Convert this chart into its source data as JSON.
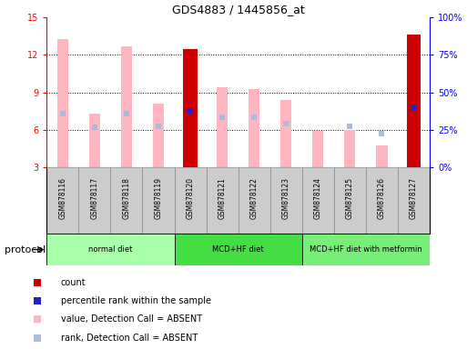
{
  "title": "GDS4883 / 1445856_at",
  "samples": [
    "GSM878116",
    "GSM878117",
    "GSM878118",
    "GSM878119",
    "GSM878120",
    "GSM878121",
    "GSM878122",
    "GSM878123",
    "GSM878124",
    "GSM878125",
    "GSM878126",
    "GSM878127"
  ],
  "value_absent": [
    13.3,
    7.3,
    12.7,
    8.1,
    null,
    9.4,
    9.3,
    8.4,
    5.9,
    6.0,
    4.8,
    null
  ],
  "rank_absent": [
    7.3,
    6.2,
    7.3,
    6.3,
    null,
    7.0,
    7.0,
    6.5,
    null,
    6.3,
    5.7,
    null
  ],
  "count_present": [
    null,
    null,
    null,
    null,
    12.5,
    null,
    null,
    null,
    null,
    null,
    null,
    13.6
  ],
  "percentile_present": [
    null,
    null,
    null,
    null,
    7.5,
    null,
    null,
    null,
    null,
    null,
    null,
    7.8
  ],
  "ylim": [
    3,
    15
  ],
  "yticks_left": [
    3,
    6,
    9,
    12,
    15
  ],
  "yticks_right": [
    "0%",
    "25%",
    "50%",
    "75%",
    "100%"
  ],
  "yticks_right_vals": [
    3,
    6,
    9,
    12,
    15
  ],
  "groups": [
    {
      "label": "normal diet",
      "start": 0,
      "end": 3,
      "color": "#aaffaa"
    },
    {
      "label": "MCD+HF diet",
      "start": 4,
      "end": 7,
      "color": "#44dd44"
    },
    {
      "label": "MCD+HF diet with metformin",
      "start": 8,
      "end": 11,
      "color": "#77ee77"
    }
  ],
  "color_count": "#CC0000",
  "color_percentile": "#2222CC",
  "color_value_absent": "#FFB6C1",
  "color_rank_absent": "#aabbdd",
  "protocol_label": "protocol",
  "legend_items": [
    {
      "label": "count",
      "color": "#CC0000"
    },
    {
      "label": "percentile rank within the sample",
      "color": "#2222CC"
    },
    {
      "label": "value, Detection Call = ABSENT",
      "color": "#FFB6C1"
    },
    {
      "label": "rank, Detection Call = ABSENT",
      "color": "#aabbdd"
    }
  ]
}
